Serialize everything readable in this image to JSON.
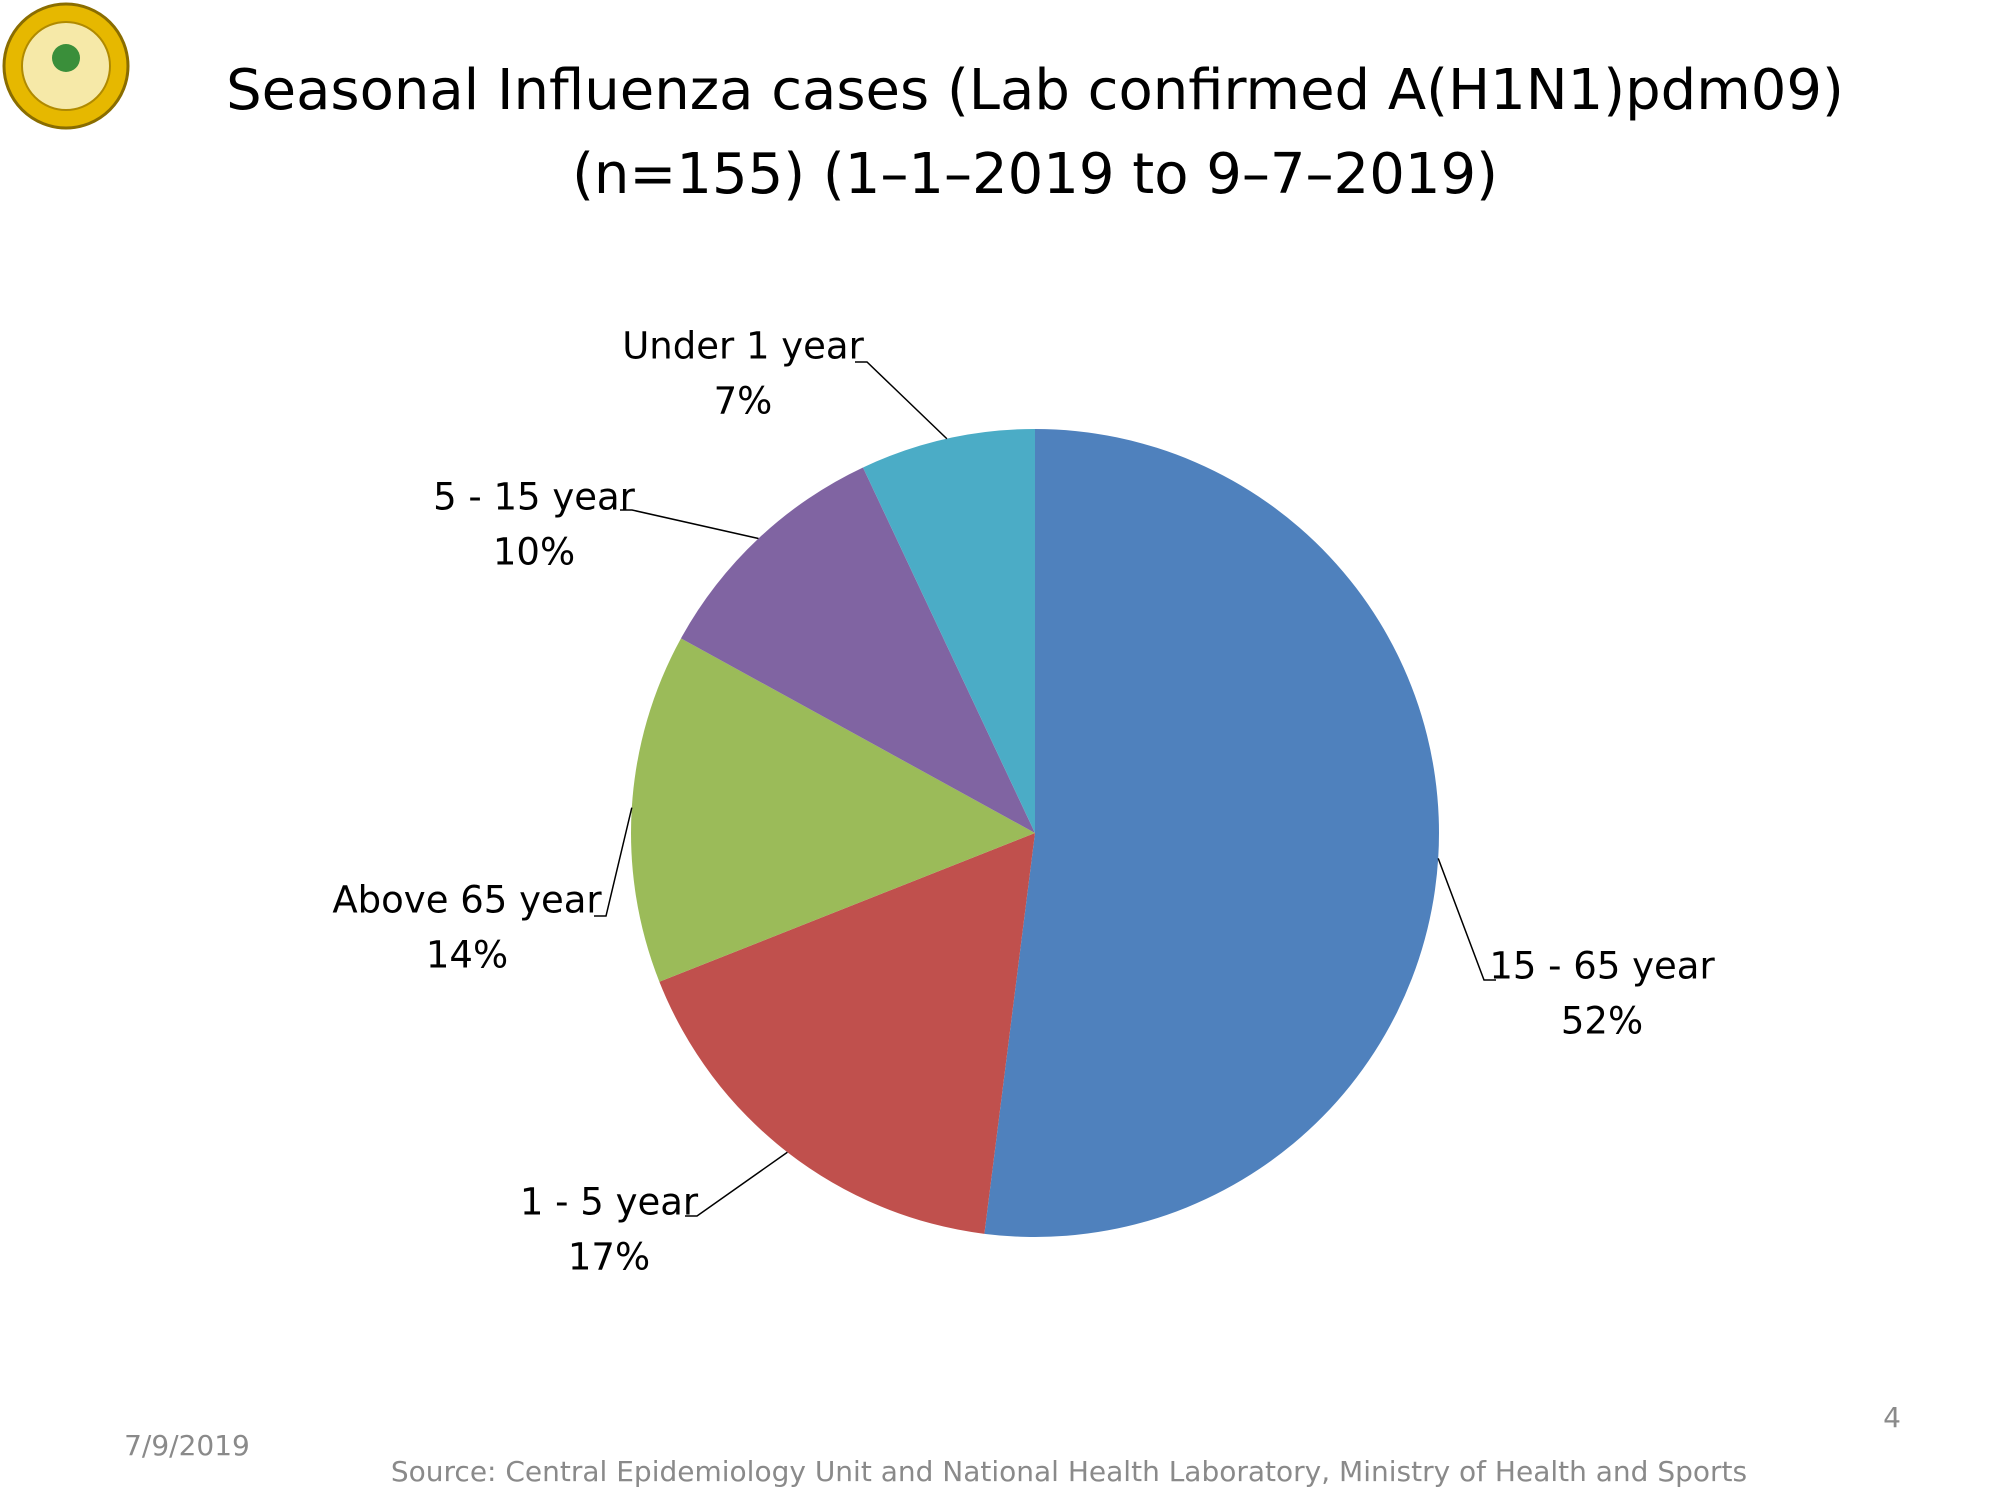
{
  "chart_data": {
    "type": "pie",
    "title": [
      "Seasonal Influenza cases (Lab confirmed A(H1N1)pdm09)",
      "(n=155) (1–1–2019 to 9–7–2019)"
    ],
    "categories": [
      "15 - 65 year",
      "1 - 5 year",
      "Above 65 year",
      "5 - 15 year",
      "Under 1 year"
    ],
    "values": [
      52,
      17,
      14,
      10,
      7
    ],
    "value_labels": [
      "52%",
      "17%",
      "14%",
      "10%",
      "7%"
    ],
    "colors": [
      "#4f81bd",
      "#c0504d",
      "#9bbb59",
      "#8064a2",
      "#4bacc6"
    ]
  },
  "footer": {
    "date": "7/9/2019",
    "page_number": "4",
    "source": "Source: Central Epidemiology Unit and National Health Laboratory, Ministry of Health and Sports"
  }
}
